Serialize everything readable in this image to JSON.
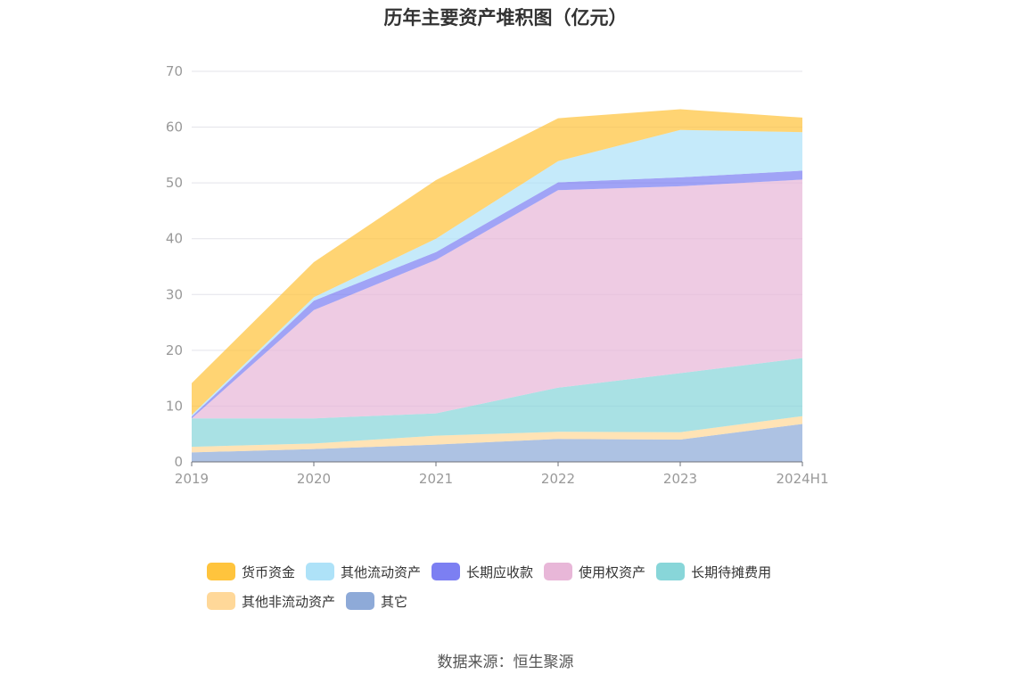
{
  "chart_data": {
    "type": "area",
    "stacked": true,
    "title": "历年主要资产堆积图（亿元）",
    "xlabel": "",
    "ylabel": "",
    "ylim": [
      0,
      70
    ],
    "yticks": [
      0,
      10,
      20,
      30,
      40,
      50,
      60,
      70
    ],
    "categories": [
      "2019",
      "2020",
      "2021",
      "2022",
      "2023",
      "2024H1"
    ],
    "grid": true,
    "legend_position": "bottom",
    "series": [
      {
        "name": "其它",
        "color": "#8eaad8",
        "values": [
          1.7,
          2.3,
          3.1,
          4.1,
          4.0,
          6.8
        ]
      },
      {
        "name": "其他非流动资产",
        "color": "#ffd899",
        "values": [
          1.0,
          1.0,
          1.6,
          1.3,
          1.3,
          1.4
        ]
      },
      {
        "name": "长期待摊费用",
        "color": "#88d6d9",
        "values": [
          5.1,
          4.5,
          4.0,
          7.9,
          10.6,
          10.4
        ]
      },
      {
        "name": "使用权资产",
        "color": "#e8b7d8",
        "values": [
          0.0,
          19.4,
          27.5,
          35.4,
          33.5,
          32.0
        ]
      },
      {
        "name": "长期应收款",
        "color": "#7c7ff2",
        "values": [
          0.3,
          1.7,
          1.4,
          1.4,
          1.6,
          1.6
        ]
      },
      {
        "name": "其他流动资产",
        "color": "#aee2f8",
        "values": [
          0.3,
          0.6,
          2.4,
          3.8,
          8.5,
          6.9
        ]
      },
      {
        "name": "货币资金",
        "color": "#ffc43d",
        "values": [
          5.7,
          6.3,
          10.5,
          7.7,
          3.7,
          2.6
        ]
      }
    ],
    "legend_order": [
      "货币资金",
      "其他流动资产",
      "长期应收款",
      "使用权资产",
      "长期待摊费用",
      "其他非流动资产",
      "其它"
    ]
  },
  "source": "数据来源：恒生聚源"
}
